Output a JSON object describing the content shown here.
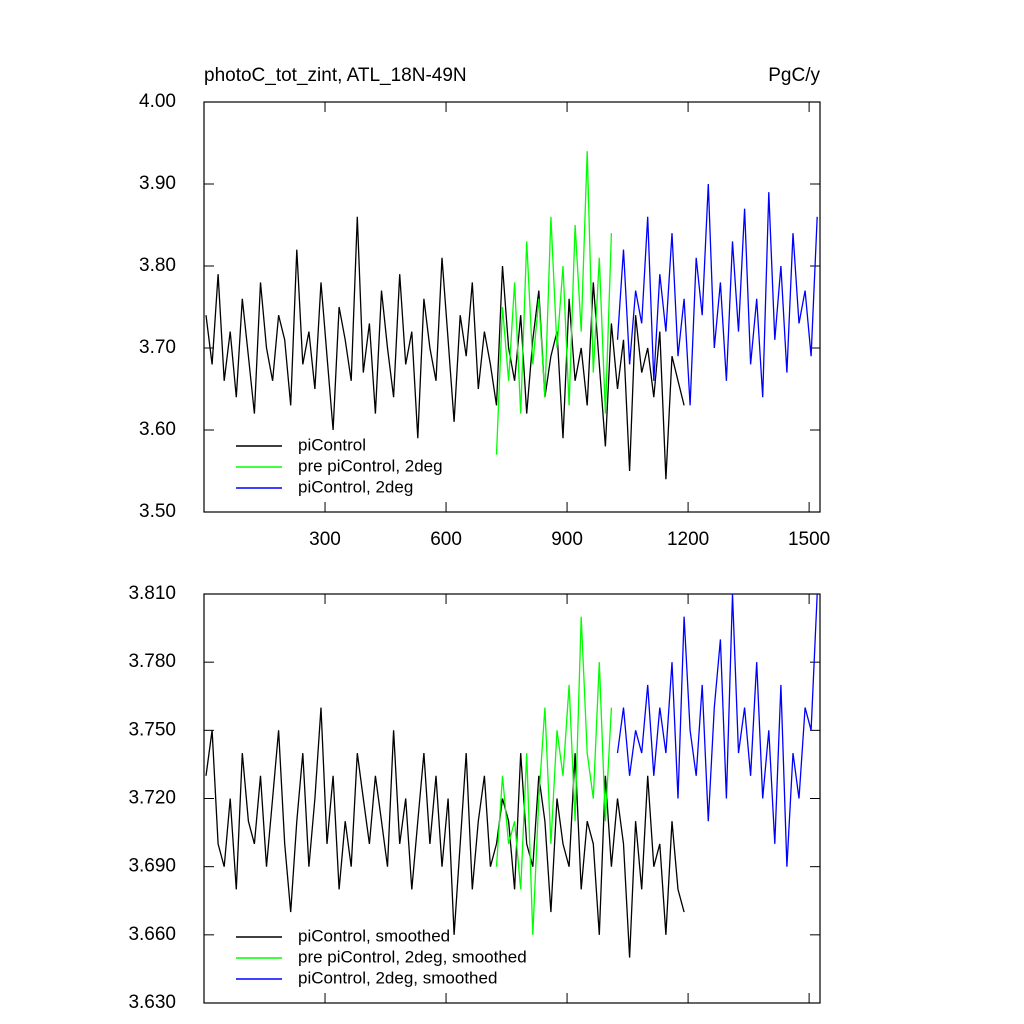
{
  "chart_data": [
    {
      "type": "line",
      "title": "photoC_tot_zint, ATL_18N-49N",
      "units": "PgC/y",
      "xlim": [
        0,
        1527
      ],
      "xticks": [
        300,
        600,
        900,
        1200,
        1500
      ],
      "xtick_labels": true,
      "ylim": [
        3.5,
        4.0
      ],
      "yticks": [
        {
          "value": 3.5,
          "label": "3.50"
        },
        {
          "value": 3.6,
          "label": "3.60"
        },
        {
          "value": 3.7,
          "label": "3.70"
        },
        {
          "value": 3.8,
          "label": "3.80"
        },
        {
          "value": 3.9,
          "label": "3.90"
        },
        {
          "value": 4.0,
          "label": "4.00"
        }
      ],
      "legend": "lower-left",
      "series": [
        {
          "name": "piControl",
          "color": "#000000",
          "x": [
            5,
            20,
            35,
            50,
            65,
            80,
            95,
            110,
            125,
            140,
            155,
            170,
            185,
            200,
            215,
            230,
            245,
            260,
            275,
            290,
            305,
            320,
            335,
            350,
            365,
            380,
            395,
            410,
            425,
            440,
            455,
            470,
            485,
            500,
            515,
            530,
            545,
            560,
            575,
            590,
            605,
            620,
            635,
            650,
            665,
            680,
            695,
            710,
            725,
            740,
            755,
            770,
            785,
            800,
            815,
            830,
            845,
            860,
            875,
            890,
            905,
            920,
            935,
            950,
            965,
            980,
            995,
            1010,
            1025,
            1040,
            1055,
            1070,
            1085,
            1100,
            1115,
            1130,
            1145,
            1160,
            1175,
            1190
          ],
          "values": [
            3.74,
            3.68,
            3.79,
            3.66,
            3.72,
            3.64,
            3.76,
            3.69,
            3.62,
            3.78,
            3.7,
            3.66,
            3.74,
            3.71,
            3.63,
            3.82,
            3.68,
            3.72,
            3.65,
            3.78,
            3.69,
            3.6,
            3.75,
            3.71,
            3.66,
            3.86,
            3.67,
            3.73,
            3.62,
            3.77,
            3.7,
            3.64,
            3.79,
            3.68,
            3.72,
            3.59,
            3.76,
            3.7,
            3.66,
            3.81,
            3.71,
            3.61,
            3.74,
            3.69,
            3.78,
            3.65,
            3.72,
            3.68,
            3.63,
            3.8,
            3.7,
            3.66,
            3.74,
            3.62,
            3.71,
            3.77,
            3.64,
            3.69,
            3.72,
            3.59,
            3.76,
            3.66,
            3.7,
            3.63,
            3.78,
            3.68,
            3.58,
            3.73,
            3.65,
            3.71,
            3.55,
            3.74,
            3.67,
            3.7,
            3.64,
            3.72,
            3.54,
            3.69,
            3.66,
            3.63
          ]
        },
        {
          "name": "pre piControl, 2deg",
          "color": "#00ff00",
          "x": [
            725,
            740,
            755,
            770,
            785,
            800,
            815,
            830,
            845,
            860,
            875,
            890,
            905,
            920,
            935,
            950,
            965,
            980,
            995,
            1010
          ],
          "values": [
            3.57,
            3.75,
            3.66,
            3.78,
            3.62,
            3.83,
            3.68,
            3.76,
            3.64,
            3.86,
            3.7,
            3.8,
            3.63,
            3.85,
            3.72,
            3.94,
            3.67,
            3.81,
            3.62,
            3.84
          ]
        },
        {
          "name": "piControl, 2deg",
          "color": "#0000ff",
          "x": [
            1025,
            1040,
            1055,
            1070,
            1085,
            1100,
            1115,
            1130,
            1145,
            1160,
            1175,
            1190,
            1205,
            1220,
            1235,
            1250,
            1265,
            1280,
            1295,
            1310,
            1325,
            1340,
            1355,
            1370,
            1385,
            1400,
            1415,
            1430,
            1445,
            1460,
            1475,
            1490,
            1505,
            1520
          ],
          "values": [
            3.71,
            3.82,
            3.68,
            3.77,
            3.73,
            3.86,
            3.66,
            3.79,
            3.72,
            3.84,
            3.69,
            3.76,
            3.63,
            3.81,
            3.74,
            3.9,
            3.7,
            3.78,
            3.66,
            3.83,
            3.72,
            3.87,
            3.68,
            3.76,
            3.64,
            3.89,
            3.71,
            3.8,
            3.67,
            3.84,
            3.73,
            3.77,
            3.69,
            3.86
          ]
        }
      ]
    },
    {
      "type": "line",
      "xlim": [
        0,
        1527
      ],
      "xticks": [
        300,
        600,
        900,
        1200,
        1500
      ],
      "xtick_labels": false,
      "ylim": [
        3.63,
        3.81
      ],
      "yticks": [
        {
          "value": 3.63,
          "label": "3.630"
        },
        {
          "value": 3.66,
          "label": "3.660"
        },
        {
          "value": 3.69,
          "label": "3.690"
        },
        {
          "value": 3.72,
          "label": "3.720"
        },
        {
          "value": 3.75,
          "label": "3.750"
        },
        {
          "value": 3.78,
          "label": "3.780"
        },
        {
          "value": 3.81,
          "label": "3.810"
        }
      ],
      "legend": "lower-left",
      "series": [
        {
          "name": "piControl, smoothed",
          "color": "#000000",
          "x": [
            5,
            20,
            35,
            50,
            65,
            80,
            95,
            110,
            125,
            140,
            155,
            170,
            185,
            200,
            215,
            230,
            245,
            260,
            275,
            290,
            305,
            320,
            335,
            350,
            365,
            380,
            395,
            410,
            425,
            440,
            455,
            470,
            485,
            500,
            515,
            530,
            545,
            560,
            575,
            590,
            605,
            620,
            635,
            650,
            665,
            680,
            695,
            710,
            725,
            740,
            755,
            770,
            785,
            800,
            815,
            830,
            845,
            860,
            875,
            890,
            905,
            920,
            935,
            950,
            965,
            980,
            995,
            1010,
            1025,
            1040,
            1055,
            1070,
            1085,
            1100,
            1115,
            1130,
            1145,
            1160,
            1175,
            1190
          ],
          "values": [
            3.73,
            3.75,
            3.7,
            3.69,
            3.72,
            3.68,
            3.74,
            3.71,
            3.7,
            3.73,
            3.69,
            3.72,
            3.75,
            3.7,
            3.67,
            3.71,
            3.74,
            3.69,
            3.72,
            3.76,
            3.7,
            3.73,
            3.68,
            3.71,
            3.69,
            3.74,
            3.72,
            3.7,
            3.73,
            3.71,
            3.69,
            3.75,
            3.7,
            3.72,
            3.68,
            3.71,
            3.74,
            3.7,
            3.73,
            3.69,
            3.72,
            3.66,
            3.7,
            3.74,
            3.68,
            3.71,
            3.73,
            3.69,
            3.7,
            3.72,
            3.71,
            3.68,
            3.74,
            3.7,
            3.69,
            3.73,
            3.71,
            3.67,
            3.72,
            3.7,
            3.69,
            3.74,
            3.68,
            3.71,
            3.7,
            3.66,
            3.73,
            3.69,
            3.72,
            3.7,
            3.65,
            3.71,
            3.68,
            3.73,
            3.69,
            3.7,
            3.66,
            3.71,
            3.68,
            3.67
          ]
        },
        {
          "name": "pre piControl, 2deg, smoothed",
          "color": "#00ff00",
          "x": [
            725,
            740,
            755,
            770,
            785,
            800,
            815,
            830,
            845,
            860,
            875,
            890,
            905,
            920,
            935,
            950,
            965,
            980,
            995,
            1010
          ],
          "values": [
            3.69,
            3.73,
            3.7,
            3.71,
            3.68,
            3.74,
            3.66,
            3.72,
            3.76,
            3.7,
            3.75,
            3.73,
            3.77,
            3.71,
            3.8,
            3.74,
            3.72,
            3.78,
            3.71,
            3.76
          ]
        },
        {
          "name": "piControl, 2deg, smoothed",
          "color": "#0000ff",
          "x": [
            1025,
            1040,
            1055,
            1070,
            1085,
            1100,
            1115,
            1130,
            1145,
            1160,
            1175,
            1190,
            1205,
            1220,
            1235,
            1250,
            1265,
            1280,
            1295,
            1310,
            1325,
            1340,
            1355,
            1370,
            1385,
            1400,
            1415,
            1430,
            1445,
            1460,
            1475,
            1490,
            1505,
            1520
          ],
          "values": [
            3.74,
            3.76,
            3.73,
            3.75,
            3.74,
            3.77,
            3.73,
            3.76,
            3.74,
            3.78,
            3.72,
            3.8,
            3.75,
            3.73,
            3.77,
            3.71,
            3.76,
            3.79,
            3.72,
            3.81,
            3.74,
            3.76,
            3.73,
            3.78,
            3.72,
            3.75,
            3.7,
            3.77,
            3.69,
            3.74,
            3.72,
            3.76,
            3.75,
            3.81
          ]
        }
      ]
    }
  ]
}
